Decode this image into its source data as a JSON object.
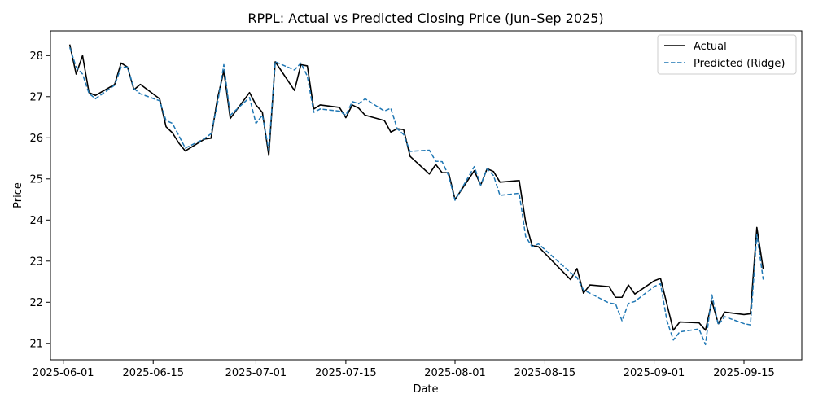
{
  "chart_data": {
    "type": "line",
    "title": "RPPL: Actual vs Predicted Closing Price (Jun–Sep 2025)",
    "xlabel": "Date",
    "ylabel": "Price",
    "xlim": [
      "2025-05-30",
      "2025-09-24"
    ],
    "ylim": [
      20.6,
      28.6
    ],
    "x_ticks": [
      "2025-06-01",
      "2025-06-15",
      "2025-07-01",
      "2025-07-15",
      "2025-08-01",
      "2025-08-15",
      "2025-09-01",
      "2025-09-15"
    ],
    "y_ticks": [
      21,
      22,
      23,
      24,
      25,
      26,
      27,
      28
    ],
    "grid": false,
    "legend_position": "top-right",
    "series": [
      {
        "name": "Actual",
        "color": "#000000",
        "style": "solid",
        "points": [
          [
            "2025-06-02",
            28.27
          ],
          [
            "2025-06-03",
            27.55
          ],
          [
            "2025-06-04",
            28.0
          ],
          [
            "2025-06-05",
            27.1
          ],
          [
            "2025-06-06",
            27.03
          ],
          [
            "2025-06-09",
            27.3
          ],
          [
            "2025-06-10",
            27.82
          ],
          [
            "2025-06-11",
            27.72
          ],
          [
            "2025-06-12",
            27.17
          ],
          [
            "2025-06-13",
            27.3
          ],
          [
            "2025-06-16",
            26.95
          ],
          [
            "2025-06-17",
            26.27
          ],
          [
            "2025-06-18",
            26.12
          ],
          [
            "2025-06-19",
            25.87
          ],
          [
            "2025-06-20",
            25.68
          ],
          [
            "2025-06-23",
            25.97
          ],
          [
            "2025-06-24",
            25.99
          ],
          [
            "2025-06-25",
            26.95
          ],
          [
            "2025-06-26",
            27.63
          ],
          [
            "2025-06-27",
            26.47
          ],
          [
            "2025-06-30",
            27.1
          ],
          [
            "2025-07-01",
            26.8
          ],
          [
            "2025-07-02",
            26.62
          ],
          [
            "2025-07-03",
            25.57
          ],
          [
            "2025-07-04",
            27.85
          ],
          [
            "2025-07-07",
            27.15
          ],
          [
            "2025-07-08",
            27.78
          ],
          [
            "2025-07-09",
            27.75
          ],
          [
            "2025-07-10",
            26.7
          ],
          [
            "2025-07-11",
            26.8
          ],
          [
            "2025-07-14",
            26.74
          ],
          [
            "2025-07-15",
            26.49
          ],
          [
            "2025-07-16",
            26.8
          ],
          [
            "2025-07-17",
            26.72
          ],
          [
            "2025-07-18",
            26.55
          ],
          [
            "2025-07-21",
            26.42
          ],
          [
            "2025-07-22",
            26.14
          ],
          [
            "2025-07-23",
            26.22
          ],
          [
            "2025-07-24",
            26.2
          ],
          [
            "2025-07-25",
            25.55
          ],
          [
            "2025-07-28",
            25.12
          ],
          [
            "2025-07-29",
            25.35
          ],
          [
            "2025-07-30",
            25.15
          ],
          [
            "2025-07-31",
            25.15
          ],
          [
            "2025-08-01",
            24.5
          ],
          [
            "2025-08-04",
            25.2
          ],
          [
            "2025-08-05",
            24.85
          ],
          [
            "2025-08-06",
            25.25
          ],
          [
            "2025-08-07",
            25.18
          ],
          [
            "2025-08-08",
            24.92
          ],
          [
            "2025-08-11",
            24.96
          ],
          [
            "2025-08-12",
            23.95
          ],
          [
            "2025-08-13",
            23.38
          ],
          [
            "2025-08-14",
            23.35
          ],
          [
            "2025-08-19",
            22.55
          ],
          [
            "2025-08-20",
            22.82
          ],
          [
            "2025-08-21",
            22.22
          ],
          [
            "2025-08-22",
            22.42
          ],
          [
            "2025-08-25",
            22.38
          ],
          [
            "2025-08-26",
            22.12
          ],
          [
            "2025-08-27",
            22.12
          ],
          [
            "2025-08-28",
            22.42
          ],
          [
            "2025-08-29",
            22.2
          ],
          [
            "2025-09-01",
            22.52
          ],
          [
            "2025-09-02",
            22.58
          ],
          [
            "2025-09-03",
            21.95
          ],
          [
            "2025-09-04",
            21.32
          ],
          [
            "2025-09-05",
            21.52
          ],
          [
            "2025-09-08",
            21.5
          ],
          [
            "2025-09-09",
            21.32
          ],
          [
            "2025-09-10",
            22.02
          ],
          [
            "2025-09-11",
            21.48
          ],
          [
            "2025-09-12",
            21.76
          ],
          [
            "2025-09-15",
            21.7
          ],
          [
            "2025-09-16",
            21.72
          ],
          [
            "2025-09-17",
            23.82
          ],
          [
            "2025-09-18",
            22.8
          ]
        ]
      },
      {
        "name": "Predicted (Ridge)",
        "color": "#1f77b4",
        "style": "dashed",
        "points": [
          [
            "2025-06-02",
            28.2
          ],
          [
            "2025-06-03",
            27.72
          ],
          [
            "2025-06-04",
            27.55
          ],
          [
            "2025-06-05",
            27.08
          ],
          [
            "2025-06-06",
            26.95
          ],
          [
            "2025-06-09",
            27.28
          ],
          [
            "2025-06-10",
            27.72
          ],
          [
            "2025-06-11",
            27.72
          ],
          [
            "2025-06-12",
            27.2
          ],
          [
            "2025-06-13",
            27.07
          ],
          [
            "2025-06-16",
            26.9
          ],
          [
            "2025-06-17",
            26.42
          ],
          [
            "2025-06-18",
            26.35
          ],
          [
            "2025-06-19",
            26.05
          ],
          [
            "2025-06-20",
            25.75
          ],
          [
            "2025-06-23",
            25.98
          ],
          [
            "2025-06-24",
            26.1
          ],
          [
            "2025-06-25",
            26.82
          ],
          [
            "2025-06-26",
            27.78
          ],
          [
            "2025-06-27",
            26.55
          ],
          [
            "2025-06-30",
            26.98
          ],
          [
            "2025-07-01",
            26.35
          ],
          [
            "2025-07-02",
            26.55
          ],
          [
            "2025-07-03",
            25.7
          ],
          [
            "2025-07-04",
            27.85
          ],
          [
            "2025-07-07",
            27.65
          ],
          [
            "2025-07-08",
            27.82
          ],
          [
            "2025-07-09",
            27.5
          ],
          [
            "2025-07-10",
            26.62
          ],
          [
            "2025-07-11",
            26.7
          ],
          [
            "2025-07-14",
            26.65
          ],
          [
            "2025-07-15",
            26.55
          ],
          [
            "2025-07-16",
            26.88
          ],
          [
            "2025-07-17",
            26.83
          ],
          [
            "2025-07-18",
            26.95
          ],
          [
            "2025-07-21",
            26.65
          ],
          [
            "2025-07-22",
            26.72
          ],
          [
            "2025-07-23",
            26.22
          ],
          [
            "2025-07-24",
            26.08
          ],
          [
            "2025-07-25",
            25.67
          ],
          [
            "2025-07-28",
            25.7
          ],
          [
            "2025-07-29",
            25.43
          ],
          [
            "2025-07-30",
            25.42
          ],
          [
            "2025-07-31",
            25.08
          ],
          [
            "2025-08-01",
            24.48
          ],
          [
            "2025-08-04",
            25.3
          ],
          [
            "2025-08-05",
            24.85
          ],
          [
            "2025-08-06",
            25.25
          ],
          [
            "2025-08-07",
            25.08
          ],
          [
            "2025-08-08",
            24.6
          ],
          [
            "2025-08-11",
            24.65
          ],
          [
            "2025-08-12",
            23.6
          ],
          [
            "2025-08-13",
            23.35
          ],
          [
            "2025-08-14",
            23.42
          ],
          [
            "2025-08-19",
            22.72
          ],
          [
            "2025-08-20",
            22.6
          ],
          [
            "2025-08-21",
            22.3
          ],
          [
            "2025-08-22",
            22.22
          ],
          [
            "2025-08-25",
            21.98
          ],
          [
            "2025-08-26",
            21.96
          ],
          [
            "2025-08-27",
            21.55
          ],
          [
            "2025-08-28",
            21.97
          ],
          [
            "2025-08-29",
            22.02
          ],
          [
            "2025-09-01",
            22.38
          ],
          [
            "2025-09-02",
            22.45
          ],
          [
            "2025-09-03",
            21.55
          ],
          [
            "2025-09-04",
            21.08
          ],
          [
            "2025-09-05",
            21.28
          ],
          [
            "2025-09-08",
            21.35
          ],
          [
            "2025-09-09",
            20.97
          ],
          [
            "2025-09-10",
            22.18
          ],
          [
            "2025-09-11",
            21.45
          ],
          [
            "2025-09-12",
            21.65
          ],
          [
            "2025-09-15",
            21.48
          ],
          [
            "2025-09-16",
            21.45
          ],
          [
            "2025-09-17",
            23.65
          ],
          [
            "2025-09-18",
            22.55
          ]
        ]
      }
    ]
  }
}
